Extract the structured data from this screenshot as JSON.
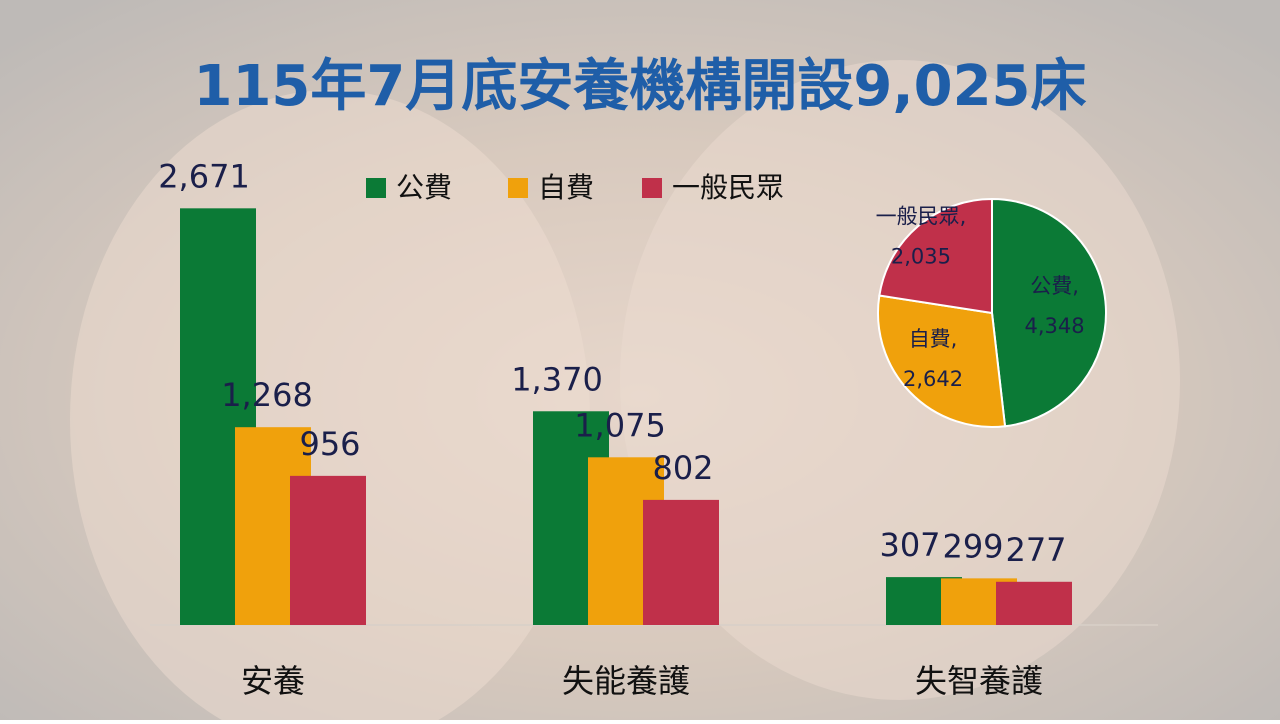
{
  "chart_data": [
    {
      "type": "bar",
      "title": "115年7月底安養機構開設9,025床",
      "categories": [
        "安養",
        "失能養護",
        "失智養護"
      ],
      "series": [
        {
          "name": "公費",
          "color": "#0b7a36",
          "values": [
            2671,
            1370,
            307
          ],
          "value_labels": [
            "2,671",
            "1,370",
            "307"
          ]
        },
        {
          "name": "自費",
          "color": "#f0a10c",
          "values": [
            1268,
            1075,
            299
          ],
          "value_labels": [
            "1,268",
            "1,075",
            "299"
          ]
        },
        {
          "name": "一般民眾",
          "color": "#c0304a",
          "values": [
            956,
            802,
            277
          ],
          "value_labels": [
            "956",
            "802",
            "277"
          ]
        }
      ],
      "ylim": [
        0,
        3000
      ]
    },
    {
      "type": "pie",
      "categories": [
        "公費,",
        "自費,",
        "一般民眾,"
      ],
      "values": [
        4348,
        2642,
        2035
      ],
      "value_labels": [
        "4,348",
        "2,642",
        "2,035"
      ],
      "colors": [
        "#0b7a36",
        "#f0a10c",
        "#c0304a"
      ]
    }
  ]
}
